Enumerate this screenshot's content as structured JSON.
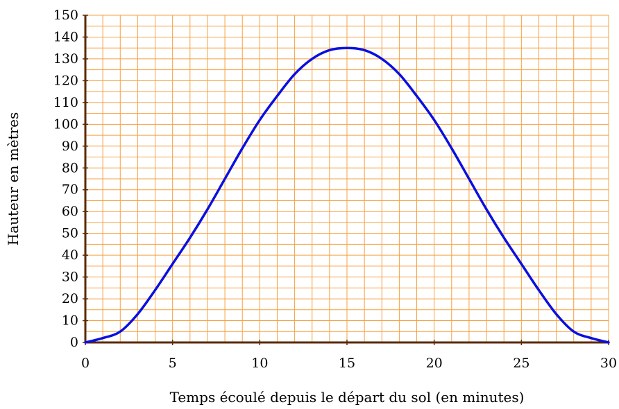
{
  "chart_data": {
    "type": "line",
    "xlabel": "Temps écoulé depuis le départ du sol (en minutes)",
    "ylabel": "Hauteur en mètres",
    "xlim": [
      0,
      30
    ],
    "ylim": [
      0,
      150
    ],
    "x_ticks": [
      "0",
      "5",
      "10",
      "15",
      "20",
      "25",
      "30"
    ],
    "y_ticks": [
      "0",
      "10",
      "20",
      "30",
      "40",
      "50",
      "60",
      "70",
      "80",
      "90",
      "100",
      "110",
      "120",
      "130",
      "140",
      "150"
    ],
    "grid": true,
    "grid_minor_x_step": 1,
    "grid_minor_y_step": 5,
    "colors": {
      "grid": "#f5a040",
      "axis": "#5a2a00",
      "line": "#0a10e0"
    },
    "series": [
      {
        "x": [
          0,
          1,
          2,
          3,
          4,
          5,
          6,
          7,
          8,
          9,
          10,
          11,
          12,
          13,
          14,
          15,
          16,
          17,
          18,
          19,
          20,
          21,
          22,
          23,
          24,
          25,
          26,
          27,
          28,
          29,
          30
        ],
        "y": [
          0,
          2,
          5,
          13,
          24,
          36,
          48,
          61,
          75,
          89,
          102,
          113,
          123,
          130,
          134,
          135,
          134,
          130,
          123,
          113,
          102,
          89,
          75,
          61,
          48,
          36,
          24,
          13,
          5,
          2,
          0
        ]
      }
    ]
  }
}
